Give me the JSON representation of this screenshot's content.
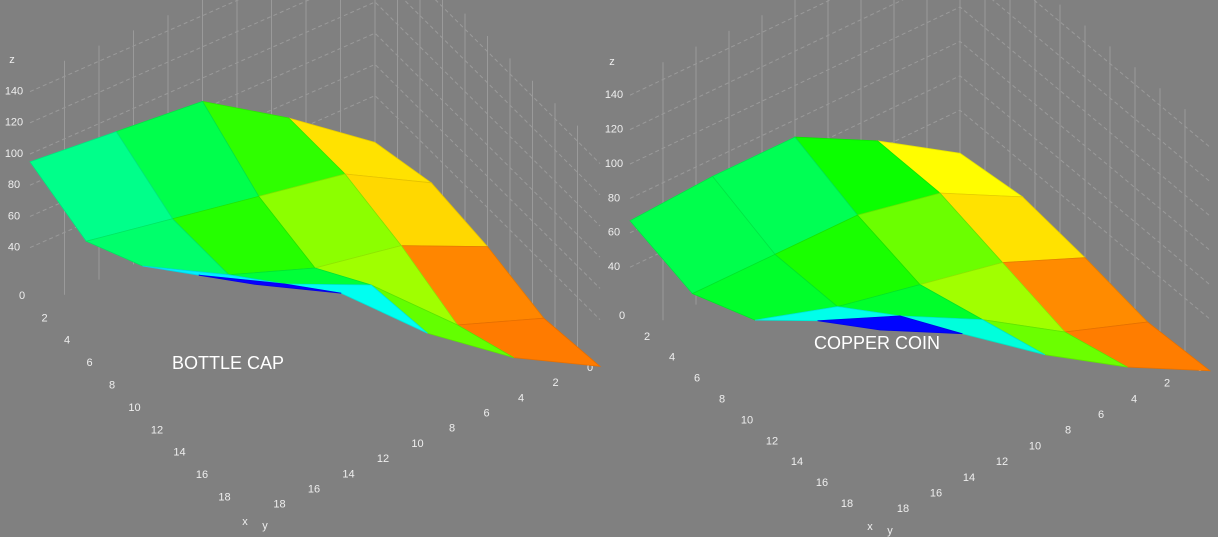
{
  "chart_data": [
    {
      "type": "surface",
      "title": "BOTTLE CAP",
      "xlabel": "x",
      "ylabel": "y",
      "zlabel": "z",
      "xlim": [
        0,
        20
      ],
      "ylim": [
        0,
        20
      ],
      "zlim": [
        0,
        150
      ],
      "xticks": [
        0,
        2,
        4,
        6,
        8,
        10,
        12,
        14,
        16,
        18
      ],
      "yticks": [
        0,
        2,
        4,
        6,
        8,
        10,
        12,
        14,
        16,
        18
      ],
      "zticks": [
        40,
        60,
        80,
        100,
        120,
        140
      ],
      "surface": {
        "x": [
          0,
          5,
          10,
          15,
          20
        ],
        "y": [
          0,
          5,
          10,
          15,
          20
        ],
        "z": [
          [
            10,
            50,
            85,
            90,
            95
          ],
          [
            20,
            50,
            60,
            70,
            80
          ],
          [
            15,
            40,
            50,
            70,
            100
          ],
          [
            5,
            25,
            75,
            100,
            130
          ],
          [
            10,
            40,
            80,
            130,
            160
          ]
        ]
      }
    },
    {
      "type": "surface",
      "title": "COPPER COIN",
      "xlabel": "x",
      "ylabel": "y",
      "zlabel": "z",
      "xlim": [
        0,
        20
      ],
      "ylim": [
        0,
        20
      ],
      "zlim": [
        0,
        150
      ],
      "xticks": [
        0,
        2,
        4,
        6,
        8,
        10,
        12,
        14,
        16,
        18
      ],
      "yticks": [
        0,
        2,
        4,
        6,
        8,
        10,
        12,
        14,
        16,
        18
      ],
      "zticks": [
        40,
        60,
        80,
        100,
        120,
        140
      ],
      "surface": {
        "x": [
          0,
          5,
          10,
          15,
          20
        ],
        "y": [
          0,
          5,
          10,
          15,
          20
        ],
        "z": [
          [
            15,
            45,
            70,
            70,
            67
          ],
          [
            20,
            45,
            55,
            55,
            55
          ],
          [
            15,
            35,
            45,
            55,
            70
          ],
          [
            8,
            25,
            55,
            80,
            100
          ],
          [
            10,
            35,
            65,
            100,
            125
          ]
        ]
      }
    }
  ]
}
